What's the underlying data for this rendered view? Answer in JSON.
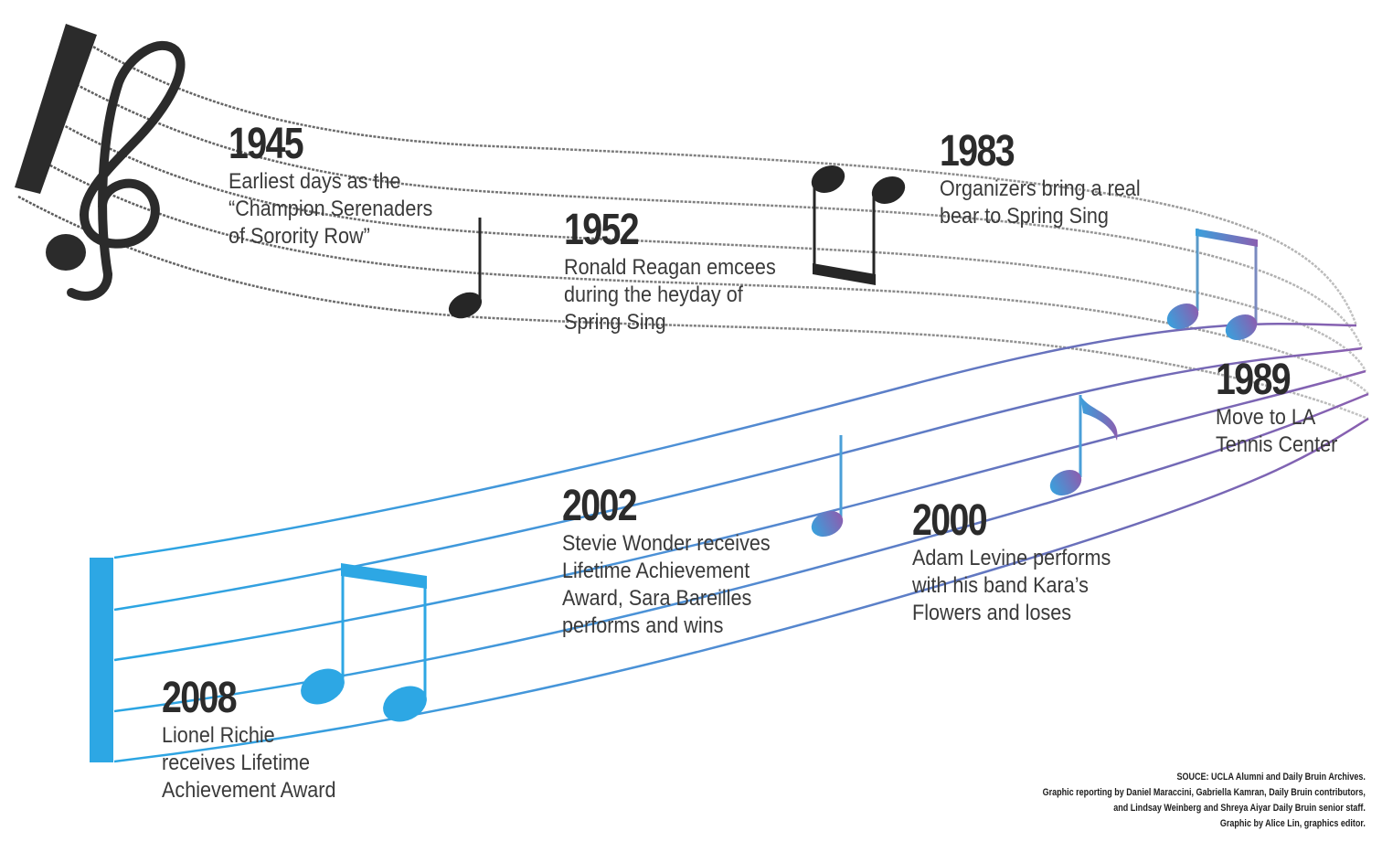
{
  "timeline": {
    "events": [
      {
        "year": "1945",
        "lines": [
          "Earliest days as the",
          "“Champion Serenaders",
          "of Sorority Row”"
        ]
      },
      {
        "year": "1952",
        "lines": [
          "Ronald Reagan emcees",
          "during the heyday of",
          "Spring Sing"
        ]
      },
      {
        "year": "1983",
        "lines": [
          "Organizers bring a real",
          "bear to Spring Sing"
        ]
      },
      {
        "year": "1989",
        "lines": [
          "Move to LA",
          "Tennis Center"
        ]
      },
      {
        "year": "2000",
        "lines": [
          "Adam Levine performs",
          "with his band Kara’s",
          "Flowers and loses"
        ]
      },
      {
        "year": "2002",
        "lines": [
          "Stevie Wonder receives",
          "Lifetime Achievement",
          "Award, Sara Bareilles",
          "performs and wins"
        ]
      },
      {
        "year": "2008",
        "lines": [
          "Lionel Richie",
          "receives Lifetime",
          "Achievement Award"
        ]
      }
    ]
  },
  "credits": {
    "source": "SOUCE: UCLA Alumni and Daily Bruin Archives.",
    "reporting_1": "Graphic reporting by Daniel Maraccini, Gabriella Kamran, Daily Bruin contributors,",
    "reporting_2": "and Lindsay Weinberg and Shreya Aiyar Daily Bruin senior staff.",
    "graphic": "Graphic by Alice Lin, graphics editor."
  },
  "colors": {
    "upper_staff": "#6e6e6e",
    "dark_note": "#262626",
    "blue": "#2da7e4",
    "purple": "#7e5aa8"
  }
}
